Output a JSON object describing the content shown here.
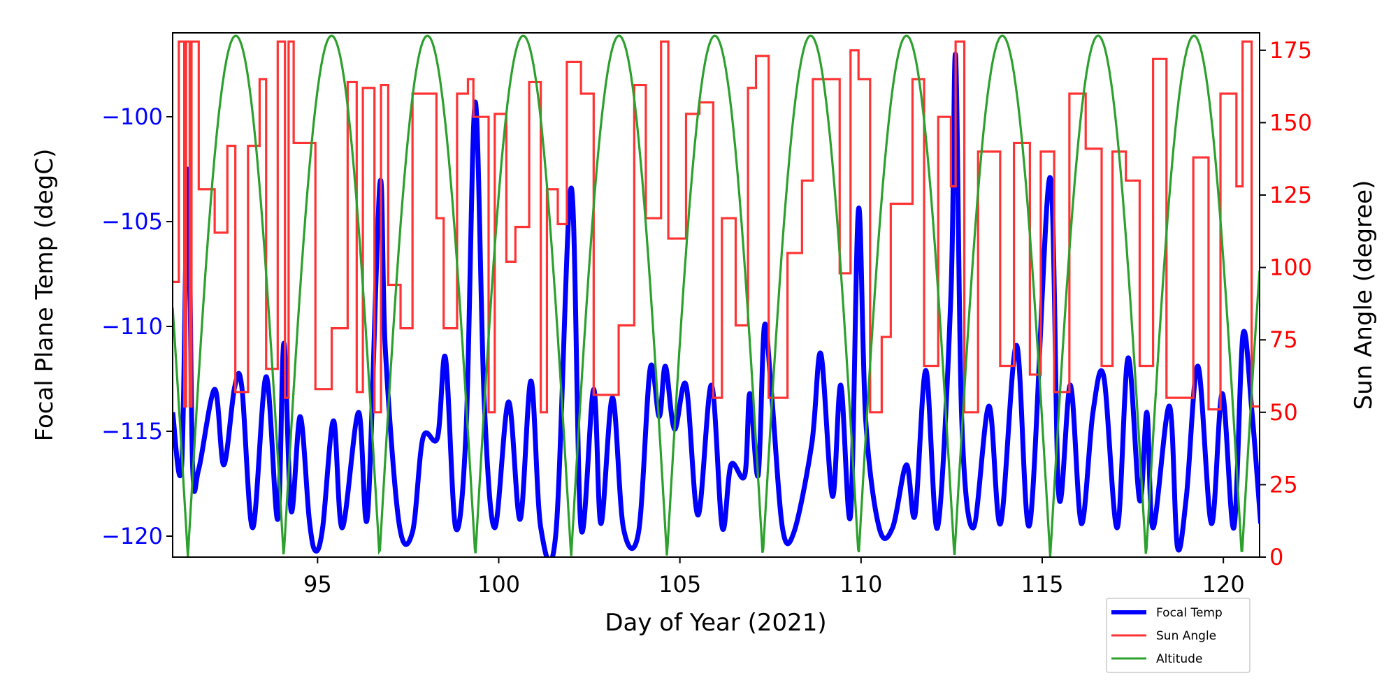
{
  "chart_data": {
    "type": "line",
    "xlabel": "Day of Year (2021)",
    "ylabel_left": "Focal Plane Temp (degC)",
    "ylabel_right": "Sun Angle (degree)",
    "xlim": [
      91,
      121
    ],
    "ylim_left": [
      -121,
      -96
    ],
    "ylim_right": [
      0,
      181
    ],
    "x_ticks": [
      95,
      100,
      105,
      110,
      115,
      120
    ],
    "y_ticks_left": [
      -100,
      -105,
      -110,
      -115,
      -120
    ],
    "y_ticks_right": [
      0,
      25,
      50,
      75,
      100,
      125,
      150,
      175
    ],
    "colors": {
      "left_axis": "#0000ff",
      "right_axis": "#ff0000",
      "focal": "#0000ff",
      "sun": "#ff3333",
      "altitude": "#2ca02c"
    },
    "legend": {
      "placement": "bottom-right-outside",
      "entries": [
        "Focal Temp",
        "Sun Angle",
        "Altitude"
      ]
    },
    "series": [
      {
        "name": "Focal Temp",
        "axis": "left",
        "points": [
          [
            91.0,
            -114.1
          ],
          [
            91.25,
            -116.6
          ],
          [
            91.42,
            -102.5
          ],
          [
            91.55,
            -116.6
          ],
          [
            91.72,
            -116.8
          ],
          [
            92.16,
            -113.0
          ],
          [
            92.41,
            -116.6
          ],
          [
            92.71,
            -112.9
          ],
          [
            92.91,
            -112.9
          ],
          [
            93.21,
            -119.6
          ],
          [
            93.58,
            -112.4
          ],
          [
            93.9,
            -119.2
          ],
          [
            94.07,
            -110.8
          ],
          [
            94.27,
            -118.8
          ],
          [
            94.52,
            -114.3
          ],
          [
            94.77,
            -119.2
          ],
          [
            94.94,
            -120.7
          ],
          [
            95.14,
            -119.6
          ],
          [
            95.44,
            -114.5
          ],
          [
            95.68,
            -119.6
          ],
          [
            96.13,
            -114.1
          ],
          [
            96.38,
            -119.0
          ],
          [
            96.72,
            -103.2
          ],
          [
            96.87,
            -111.1
          ],
          [
            97.25,
            -119.4
          ],
          [
            97.62,
            -119.8
          ],
          [
            97.91,
            -115.3
          ],
          [
            98.31,
            -115.3
          ],
          [
            98.53,
            -111.5
          ],
          [
            98.81,
            -119.6
          ],
          [
            99.1,
            -114.9
          ],
          [
            99.35,
            -99.3
          ],
          [
            99.6,
            -113.6
          ],
          [
            99.89,
            -119.6
          ],
          [
            100.27,
            -113.6
          ],
          [
            100.59,
            -119.2
          ],
          [
            100.89,
            -112.6
          ],
          [
            101.16,
            -119.6
          ],
          [
            101.58,
            -119.8
          ],
          [
            102.0,
            -103.4
          ],
          [
            102.27,
            -119.6
          ],
          [
            102.62,
            -113.0
          ],
          [
            102.82,
            -119.4
          ],
          [
            103.14,
            -113.4
          ],
          [
            103.44,
            -119.6
          ],
          [
            103.86,
            -119.8
          ],
          [
            104.18,
            -112.0
          ],
          [
            104.43,
            -114.3
          ],
          [
            104.6,
            -111.9
          ],
          [
            104.85,
            -114.9
          ],
          [
            105.17,
            -112.8
          ],
          [
            105.5,
            -119.0
          ],
          [
            105.87,
            -112.8
          ],
          [
            106.17,
            -119.6
          ],
          [
            106.41,
            -116.6
          ],
          [
            106.79,
            -117.1
          ],
          [
            106.93,
            -113.2
          ],
          [
            107.16,
            -117.1
          ],
          [
            107.33,
            -110.0
          ],
          [
            107.53,
            -113.2
          ],
          [
            107.83,
            -119.6
          ],
          [
            108.15,
            -119.8
          ],
          [
            108.64,
            -115.6
          ],
          [
            108.89,
            -111.3
          ],
          [
            109.21,
            -118.1
          ],
          [
            109.44,
            -112.8
          ],
          [
            109.71,
            -119.0
          ],
          [
            109.93,
            -104.4
          ],
          [
            110.13,
            -114.5
          ],
          [
            110.5,
            -119.6
          ],
          [
            110.87,
            -119.6
          ],
          [
            111.25,
            -116.6
          ],
          [
            111.49,
            -119.0
          ],
          [
            111.79,
            -112.1
          ],
          [
            112.11,
            -119.6
          ],
          [
            112.48,
            -108.5
          ],
          [
            112.61,
            -97.1
          ],
          [
            112.78,
            -114.5
          ],
          [
            113.1,
            -119.6
          ],
          [
            113.53,
            -113.8
          ],
          [
            113.85,
            -119.4
          ],
          [
            114.29,
            -110.9
          ],
          [
            114.66,
            -119.4
          ],
          [
            115.21,
            -102.9
          ],
          [
            115.46,
            -118.1
          ],
          [
            115.78,
            -112.8
          ],
          [
            116.08,
            -119.4
          ],
          [
            116.4,
            -114.1
          ],
          [
            116.7,
            -112.4
          ],
          [
            117.07,
            -119.6
          ],
          [
            117.37,
            -111.5
          ],
          [
            117.69,
            -118.3
          ],
          [
            117.89,
            -114.1
          ],
          [
            118.06,
            -119.6
          ],
          [
            118.51,
            -113.8
          ],
          [
            118.73,
            -120.5
          ],
          [
            118.98,
            -118.1
          ],
          [
            119.3,
            -111.9
          ],
          [
            119.67,
            -119.4
          ],
          [
            119.97,
            -113.2
          ],
          [
            120.29,
            -119.6
          ],
          [
            120.54,
            -110.4
          ],
          [
            120.79,
            -114.1
          ],
          [
            121.03,
            -119.4
          ]
        ]
      },
      {
        "name": "Sun Angle",
        "axis": "right",
        "step": "post",
        "points": [
          [
            91.0,
            95
          ],
          [
            91.17,
            178
          ],
          [
            91.32,
            52
          ],
          [
            91.37,
            178
          ],
          [
            91.47,
            52
          ],
          [
            91.52,
            178
          ],
          [
            91.72,
            127
          ],
          [
            92.16,
            112
          ],
          [
            92.51,
            142
          ],
          [
            92.73,
            57
          ],
          [
            93.08,
            142
          ],
          [
            93.4,
            165
          ],
          [
            93.58,
            65
          ],
          [
            93.9,
            178
          ],
          [
            94.1,
            55
          ],
          [
            94.2,
            178
          ],
          [
            94.34,
            143
          ],
          [
            94.94,
            58
          ],
          [
            95.39,
            79
          ],
          [
            95.83,
            164
          ],
          [
            96.08,
            57
          ],
          [
            96.25,
            162
          ],
          [
            96.57,
            50
          ],
          [
            96.75,
            163
          ],
          [
            96.95,
            94
          ],
          [
            97.29,
            79
          ],
          [
            97.62,
            160
          ],
          [
            98.28,
            117
          ],
          [
            98.48,
            79
          ],
          [
            98.85,
            160
          ],
          [
            99.15,
            165
          ],
          [
            99.3,
            152
          ],
          [
            99.72,
            50
          ],
          [
            99.89,
            153
          ],
          [
            100.21,
            102
          ],
          [
            100.46,
            114
          ],
          [
            100.84,
            164
          ],
          [
            101.16,
            50
          ],
          [
            101.33,
            127
          ],
          [
            101.63,
            115
          ],
          [
            101.88,
            171
          ],
          [
            102.27,
            160
          ],
          [
            102.62,
            56
          ],
          [
            103.31,
            80
          ],
          [
            103.74,
            163
          ],
          [
            104.06,
            117
          ],
          [
            104.48,
            178
          ],
          [
            104.68,
            110
          ],
          [
            105.17,
            153
          ],
          [
            105.54,
            157
          ],
          [
            105.92,
            55
          ],
          [
            106.16,
            117
          ],
          [
            106.54,
            80
          ],
          [
            106.88,
            162
          ],
          [
            107.1,
            173
          ],
          [
            107.45,
            55
          ],
          [
            107.97,
            105
          ],
          [
            108.37,
            130
          ],
          [
            108.67,
            165
          ],
          [
            109.41,
            98
          ],
          [
            109.71,
            175
          ],
          [
            109.93,
            165
          ],
          [
            110.25,
            50
          ],
          [
            110.57,
            76
          ],
          [
            110.82,
            122
          ],
          [
            111.42,
            165
          ],
          [
            111.74,
            66
          ],
          [
            112.13,
            152
          ],
          [
            112.48,
            128
          ],
          [
            112.61,
            178
          ],
          [
            112.85,
            50
          ],
          [
            113.23,
            140
          ],
          [
            113.84,
            66
          ],
          [
            114.22,
            143
          ],
          [
            114.66,
            63
          ],
          [
            114.96,
            140
          ],
          [
            115.33,
            57
          ],
          [
            115.75,
            160
          ],
          [
            116.2,
            141
          ],
          [
            116.64,
            66
          ],
          [
            116.94,
            140
          ],
          [
            117.31,
            130
          ],
          [
            117.69,
            66
          ],
          [
            118.06,
            172
          ],
          [
            118.43,
            55
          ],
          [
            119.17,
            138
          ],
          [
            119.59,
            51
          ],
          [
            119.92,
            160
          ],
          [
            120.36,
            128
          ],
          [
            120.53,
            178
          ],
          [
            120.78,
            52
          ],
          [
            121.05,
            52
          ]
        ]
      },
      {
        "name": "Altitude",
        "axis": "right",
        "shape": "abs-sine",
        "peak": 180,
        "zero_days": [
          91.42,
          94.07,
          96.72,
          99.35,
          102.0,
          104.63,
          107.28,
          109.93,
          112.58,
          115.21,
          117.86,
          120.51
        ]
      }
    ]
  }
}
